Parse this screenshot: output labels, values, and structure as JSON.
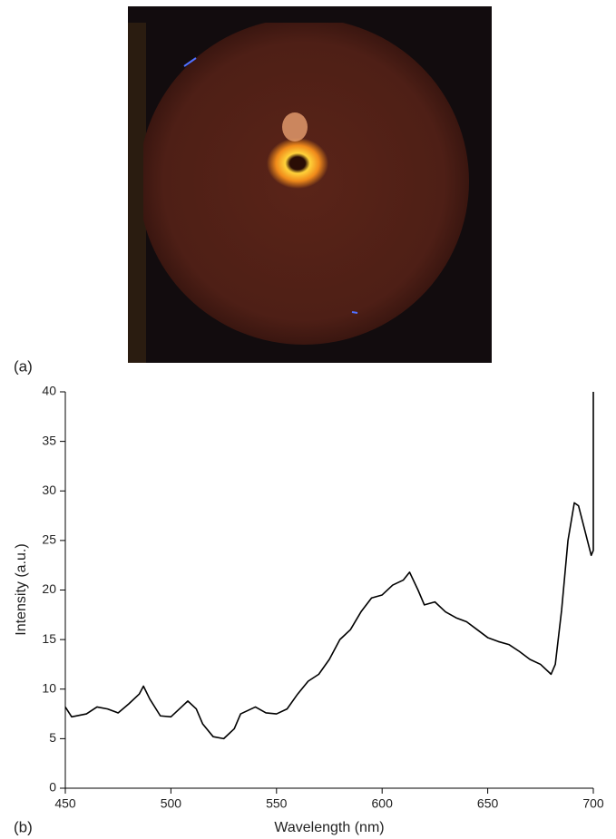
{
  "chart_data": {
    "type": "line",
    "panel_a_label": "(a)",
    "panel_b_label": "(b)",
    "xlabel": "Wavelength (nm)",
    "ylabel": "Intensity (a.u.)",
    "x": [
      450,
      453,
      460,
      465,
      470,
      475,
      480,
      485,
      487,
      490,
      495,
      500,
      505,
      508,
      512,
      515,
      520,
      525,
      530,
      533,
      540,
      545,
      550,
      555,
      560,
      565,
      570,
      575,
      580,
      585,
      590,
      595,
      600,
      605,
      610,
      613,
      617,
      620,
      625,
      630,
      635,
      640,
      645,
      650,
      655,
      660,
      665,
      670,
      675,
      680,
      682,
      685,
      688,
      691,
      693,
      696,
      699,
      700,
      700
    ],
    "series": [
      {
        "color": "#000000",
        "values": [
          8.2,
          7.2,
          7.5,
          8.2,
          8.0,
          7.6,
          8.5,
          9.5,
          10.3,
          9.0,
          7.3,
          7.2,
          8.2,
          8.8,
          8.0,
          6.5,
          5.2,
          5.0,
          6.0,
          7.5,
          8.2,
          7.6,
          7.5,
          8.0,
          9.5,
          10.8,
          11.5,
          13.0,
          15.0,
          16.0,
          17.8,
          19.2,
          19.5,
          20.5,
          21.0,
          21.8,
          20.0,
          18.5,
          18.8,
          17.8,
          17.2,
          16.8,
          16.0,
          15.2,
          14.8,
          14.5,
          13.8,
          13.0,
          12.5,
          11.5,
          12.5,
          18.0,
          25.0,
          28.8,
          28.5,
          26.0,
          23.5,
          24.0,
          40
        ]
      }
    ],
    "xlim": [
      450,
      700
    ],
    "xticks": [
      450,
      500,
      550,
      600,
      650,
      700
    ],
    "ylim": [
      0,
      40
    ],
    "yticks": [
      0,
      5,
      10,
      15,
      20,
      25,
      30,
      35,
      40
    ]
  }
}
